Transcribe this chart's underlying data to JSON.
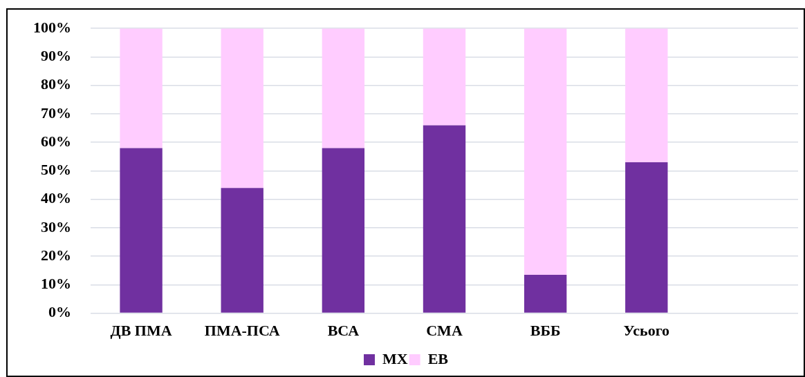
{
  "chart_data": {
    "type": "bar",
    "stacked": true,
    "categories": [
      "ДВ ПМА",
      "ПМА-ПСА",
      "ВСА",
      "СМА",
      "ВББ",
      "Усього",
      null
    ],
    "series": [
      {
        "name": "МХ",
        "color": "#7030a0",
        "values": [
          58,
          44,
          58,
          66,
          13.5,
          53,
          null
        ]
      },
      {
        "name": "ЕВ",
        "color": "#ffccff",
        "values": [
          42,
          56,
          42,
          34,
          86.5,
          47,
          null
        ]
      }
    ],
    "ylim": [
      0,
      100
    ],
    "yticks": [
      {
        "value": 0,
        "label": "0%"
      },
      {
        "value": 10,
        "label": "10%"
      },
      {
        "value": 20,
        "label": "20%"
      },
      {
        "value": 30,
        "label": "30%"
      },
      {
        "value": 40,
        "label": "40%"
      },
      {
        "value": 50,
        "label": "50%"
      },
      {
        "value": 60,
        "label": "60%"
      },
      {
        "value": 70,
        "label": "70%"
      },
      {
        "value": 80,
        "label": "80%"
      },
      {
        "value": 90,
        "label": "90%"
      },
      {
        "value": 100,
        "label": "100%"
      }
    ],
    "grid": "y",
    "legend": "bottom"
  }
}
